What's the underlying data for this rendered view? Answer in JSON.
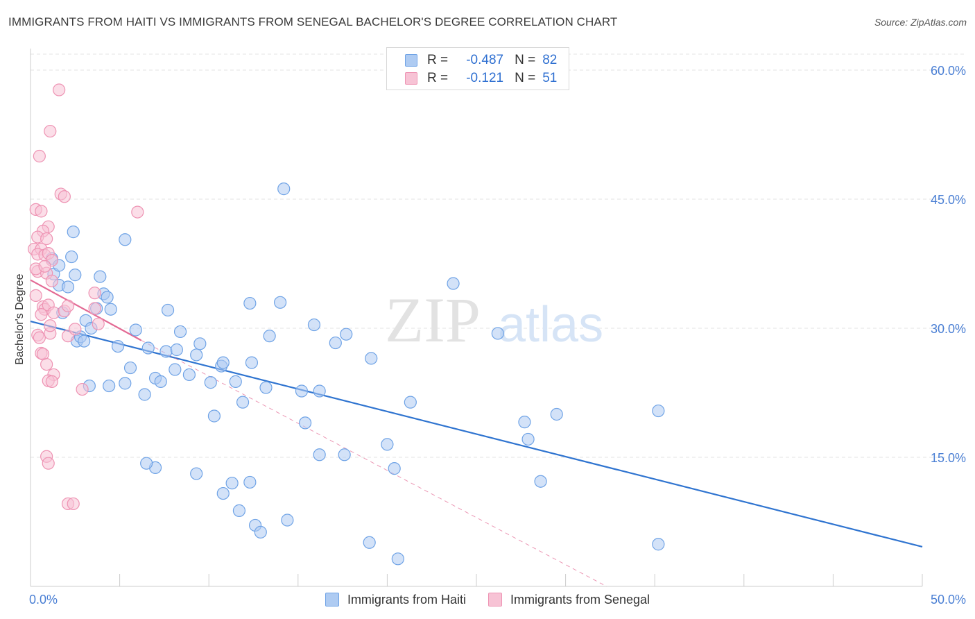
{
  "chart_data": {
    "type": "scatter",
    "title": "IMMIGRANTS FROM HAITI VS IMMIGRANTS FROM SENEGAL BACHELOR'S DEGREE CORRELATION CHART",
    "source": "Source: ZipAtlas.com",
    "ylabel": "Bachelor's Degree",
    "xlabel": "",
    "xlim": [
      0,
      50
    ],
    "ylim": [
      0,
      62.5
    ],
    "x_tick_labels": [
      "0.0%",
      "50.0%"
    ],
    "y_ticks": [
      15,
      30,
      45,
      60
    ],
    "y_tick_labels": [
      "15.0%",
      "30.0%",
      "45.0%",
      "60.0%"
    ],
    "grid": true,
    "watermark": {
      "part1": "ZIP",
      "part2": "atlas"
    },
    "legend": [
      {
        "r_label": "R =",
        "r_value": "-0.487",
        "n_label": "N =",
        "n_value": "82"
      },
      {
        "r_label": "R =",
        "r_value": "-0.121",
        "n_label": "N =",
        "n_value": "51"
      }
    ],
    "series": [
      {
        "name": "Immigrants from Haiti",
        "color": "#6fa3e6",
        "fill": "#aecbf2",
        "trend_color": "#2f74d0",
        "trend": {
          "x0": 0,
          "y0": 30.8,
          "x1": 50,
          "y1": 4.6,
          "style": "solid"
        },
        "points": [
          [
            1.3,
            36.3
          ],
          [
            1.6,
            35.0
          ],
          [
            2.1,
            34.8
          ],
          [
            1.8,
            31.8
          ],
          [
            2.6,
            28.5
          ],
          [
            2.8,
            29.0
          ],
          [
            2.3,
            38.3
          ],
          [
            2.4,
            41.2
          ],
          [
            2.5,
            36.2
          ],
          [
            3.1,
            30.9
          ],
          [
            3.4,
            30.0
          ],
          [
            3.7,
            32.3
          ],
          [
            3.9,
            36.0
          ],
          [
            4.1,
            34.0
          ],
          [
            4.3,
            33.6
          ],
          [
            4.5,
            32.2
          ],
          [
            4.9,
            27.9
          ],
          [
            5.3,
            23.6
          ],
          [
            5.6,
            25.4
          ],
          [
            5.3,
            40.3
          ],
          [
            6.4,
            22.3
          ],
          [
            5.9,
            29.8
          ],
          [
            6.6,
            27.7
          ],
          [
            7.0,
            24.2
          ],
          [
            7.3,
            23.8
          ],
          [
            7.6,
            27.3
          ],
          [
            7.7,
            32.1
          ],
          [
            8.1,
            25.2
          ],
          [
            8.2,
            27.5
          ],
          [
            8.4,
            29.6
          ],
          [
            8.9,
            24.6
          ],
          [
            9.3,
            26.9
          ],
          [
            9.5,
            28.2
          ],
          [
            9.3,
            13.1
          ],
          [
            10.1,
            23.7
          ],
          [
            10.3,
            19.8
          ],
          [
            10.7,
            25.6
          ],
          [
            10.8,
            26.0
          ],
          [
            10.8,
            10.8
          ],
          [
            11.3,
            12.0
          ],
          [
            11.5,
            23.8
          ],
          [
            11.9,
            21.4
          ],
          [
            11.7,
            8.8
          ],
          [
            12.3,
            32.9
          ],
          [
            12.4,
            26.0
          ],
          [
            12.3,
            12.1
          ],
          [
            12.6,
            7.1
          ],
          [
            12.9,
            6.3
          ],
          [
            13.2,
            23.1
          ],
          [
            13.4,
            29.1
          ],
          [
            14.0,
            33.0
          ],
          [
            14.2,
            46.2
          ],
          [
            14.4,
            7.7
          ],
          [
            15.2,
            22.7
          ],
          [
            15.4,
            19.0
          ],
          [
            15.9,
            30.4
          ],
          [
            16.2,
            15.3
          ],
          [
            16.2,
            22.7
          ],
          [
            17.1,
            28.3
          ],
          [
            17.7,
            29.3
          ],
          [
            17.6,
            15.3
          ],
          [
            19.1,
            26.5
          ],
          [
            19.0,
            5.1
          ],
          [
            20.0,
            16.5
          ],
          [
            20.4,
            13.7
          ],
          [
            21.3,
            21.4
          ],
          [
            23.7,
            35.2
          ],
          [
            26.2,
            29.4
          ],
          [
            27.7,
            19.1
          ],
          [
            27.9,
            17.1
          ],
          [
            28.6,
            12.2
          ],
          [
            29.5,
            20.0
          ],
          [
            35.2,
            20.4
          ],
          [
            7.0,
            13.8
          ],
          [
            3.0,
            28.5
          ],
          [
            3.3,
            23.3
          ],
          [
            20.6,
            3.2
          ],
          [
            35.2,
            4.9
          ],
          [
            1.2,
            38.1
          ],
          [
            1.6,
            37.3
          ],
          [
            6.5,
            14.3
          ],
          [
            4.4,
            23.3
          ]
        ]
      },
      {
        "name": "Immigrants from Senegal",
        "color": "#ee93b3",
        "fill": "#f7c3d5",
        "trend_color": "#e36a94",
        "trend": {
          "x0": 0,
          "y0": 35.6,
          "x1": 6.2,
          "y1": 28.6,
          "style": "solid",
          "ext_x1": 32.3,
          "ext_y1": 0,
          "ext_style": "dashed"
        },
        "points": [
          [
            1.6,
            57.7
          ],
          [
            1.1,
            52.9
          ],
          [
            0.5,
            50.0
          ],
          [
            1.7,
            45.6
          ],
          [
            1.9,
            45.3
          ],
          [
            0.3,
            43.8
          ],
          [
            0.6,
            43.6
          ],
          [
            6.0,
            43.5
          ],
          [
            1.0,
            41.8
          ],
          [
            0.7,
            41.3
          ],
          [
            0.4,
            40.6
          ],
          [
            0.9,
            40.4
          ],
          [
            0.2,
            39.2
          ],
          [
            0.6,
            39.2
          ],
          [
            0.4,
            38.6
          ],
          [
            0.8,
            38.5
          ],
          [
            1.0,
            38.7
          ],
          [
            1.2,
            37.9
          ],
          [
            0.4,
            36.6
          ],
          [
            0.9,
            36.4
          ],
          [
            1.2,
            35.5
          ],
          [
            0.3,
            33.8
          ],
          [
            0.7,
            32.5
          ],
          [
            0.8,
            32.2
          ],
          [
            1.0,
            32.7
          ],
          [
            1.3,
            31.8
          ],
          [
            1.9,
            32.0
          ],
          [
            2.1,
            32.6
          ],
          [
            3.6,
            34.1
          ],
          [
            3.6,
            32.3
          ],
          [
            0.4,
            29.2
          ],
          [
            0.5,
            28.9
          ],
          [
            1.1,
            29.4
          ],
          [
            2.1,
            29.1
          ],
          [
            2.5,
            29.9
          ],
          [
            0.6,
            27.1
          ],
          [
            0.7,
            27.0
          ],
          [
            0.9,
            25.8
          ],
          [
            1.3,
            24.6
          ],
          [
            1.0,
            23.9
          ],
          [
            1.2,
            23.8
          ],
          [
            2.9,
            22.9
          ],
          [
            0.9,
            15.1
          ],
          [
            1.0,
            14.3
          ],
          [
            2.1,
            9.6
          ],
          [
            2.4,
            9.6
          ],
          [
            3.8,
            30.5
          ],
          [
            0.3,
            36.9
          ],
          [
            0.8,
            37.2
          ],
          [
            0.6,
            31.6
          ],
          [
            1.1,
            30.3
          ]
        ]
      }
    ]
  }
}
